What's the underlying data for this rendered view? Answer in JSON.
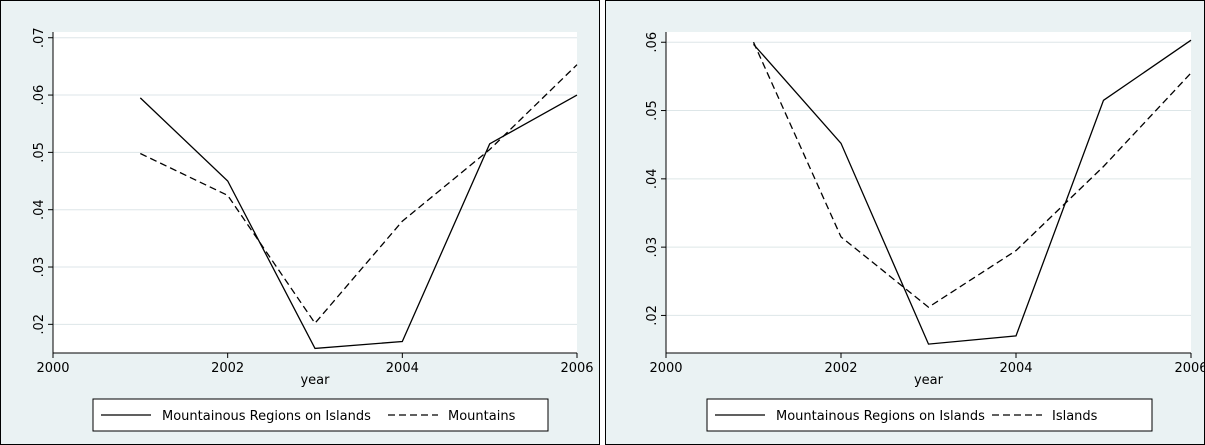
{
  "chart_data": [
    {
      "type": "line",
      "xlabel": "year",
      "ylabel": "",
      "xlim": [
        2000,
        2006
      ],
      "ylim": [
        0.015,
        0.071
      ],
      "x_ticks": [
        2000,
        2002,
        2004,
        2006
      ],
      "x_tick_labels": [
        "2000",
        "2002",
        "2004",
        "2006"
      ],
      "y_ticks": [
        0.02,
        0.03,
        0.04,
        0.05,
        0.06,
        0.07
      ],
      "y_tick_labels": [
        ".02",
        ".03",
        ".04",
        ".05",
        ".06",
        ".07"
      ],
      "grid": true,
      "legend_position": "bottom",
      "x": [
        2001,
        2002,
        2003,
        2004,
        2005,
        2006
      ],
      "series": [
        {
          "name": "Mountainous Regions on Islands",
          "style": "solid",
          "values": [
            0.0595,
            0.045,
            0.0158,
            0.017,
            0.0515,
            0.06
          ]
        },
        {
          "name": "Mountains",
          "style": "dashed",
          "values": [
            0.0498,
            0.0425,
            0.0202,
            0.038,
            0.0505,
            0.0653
          ]
        }
      ]
    },
    {
      "type": "line",
      "xlabel": "year",
      "ylabel": "",
      "xlim": [
        2000,
        2006
      ],
      "ylim": [
        0.0145,
        0.0615
      ],
      "x_ticks": [
        2000,
        2002,
        2004,
        2006
      ],
      "x_tick_labels": [
        "2000",
        "2002",
        "2004",
        "2006"
      ],
      "y_ticks": [
        0.02,
        0.03,
        0.04,
        0.05,
        0.06
      ],
      "y_tick_labels": [
        ".02",
        ".03",
        ".04",
        ".05",
        ".06"
      ],
      "grid": true,
      "legend_position": "bottom",
      "x": [
        2001,
        2002,
        2003,
        2004,
        2005,
        2006
      ],
      "series": [
        {
          "name": "Mountainous Regions on Islands",
          "style": "solid",
          "values": [
            0.0597,
            0.0452,
            0.0158,
            0.017,
            0.0515,
            0.0603
          ]
        },
        {
          "name": "Islands",
          "style": "dashed",
          "values": [
            0.06,
            0.0315,
            0.0212,
            0.0295,
            0.0418,
            0.0555
          ]
        }
      ]
    }
  ]
}
